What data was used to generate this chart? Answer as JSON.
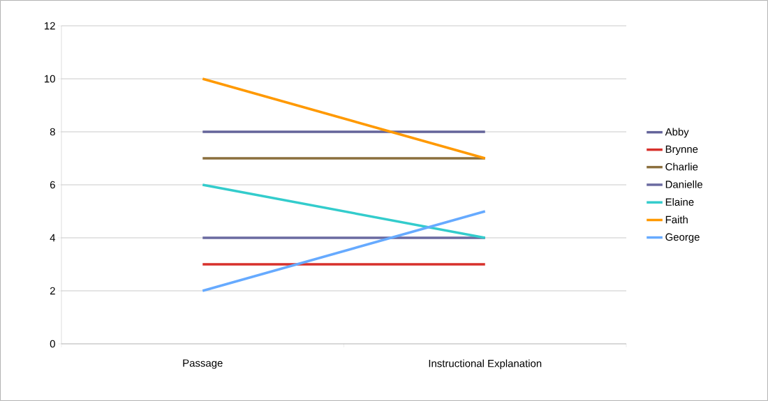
{
  "chart_data": {
    "type": "line",
    "categories": [
      "Passage",
      "Instructional Explanation"
    ],
    "series": [
      {
        "name": "Abby",
        "color": "#64649a",
        "values": [
          8,
          8
        ]
      },
      {
        "name": "Brynne",
        "color": "#d7302b",
        "values": [
          3,
          3
        ]
      },
      {
        "name": "Charlie",
        "color": "#8b6f3d",
        "values": [
          7,
          7
        ]
      },
      {
        "name": "Danielle",
        "color": "#6a6aa0",
        "values": [
          4,
          4
        ]
      },
      {
        "name": "Elaine",
        "color": "#33cccc",
        "values": [
          6,
          4
        ]
      },
      {
        "name": "Faith",
        "color": "#ff9900",
        "values": [
          10,
          7
        ]
      },
      {
        "name": "George",
        "color": "#66aaff",
        "values": [
          2,
          5
        ]
      }
    ],
    "ylim": [
      0,
      12
    ],
    "yticks": [
      0,
      2,
      4,
      6,
      8,
      10,
      12
    ],
    "grid": "y",
    "legend": "right",
    "marker": "none",
    "line_style": "solid"
  }
}
